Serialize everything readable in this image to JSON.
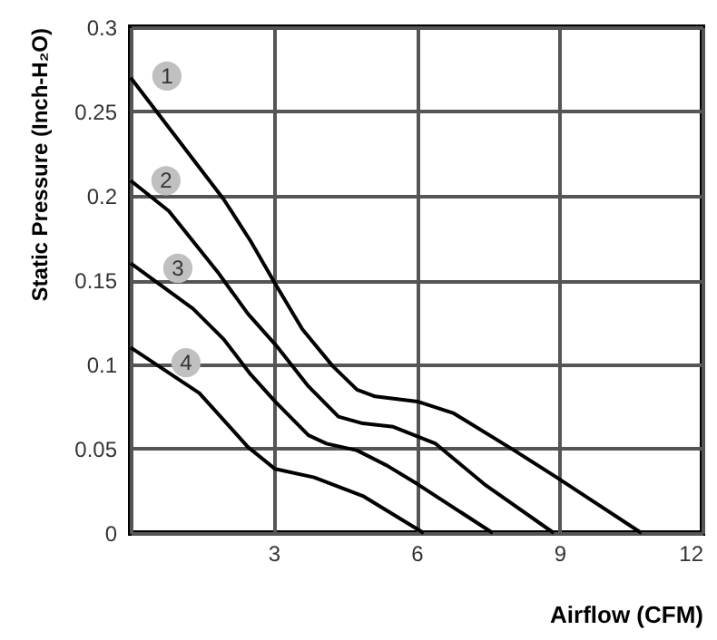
{
  "chart_data": {
    "type": "line",
    "xlabel": "Airflow (CFM)",
    "ylabel": "Static Pressure (Inch-H₂O)",
    "xlim": [
      0,
      12
    ],
    "xticks": [
      {
        "value": 0,
        "label": null
      },
      3,
      6,
      9,
      12
    ],
    "ylim": [
      0,
      0.3
    ],
    "yticks": [
      {
        "value": 0,
        "label": "0"
      },
      0.05,
      0.1,
      0.15,
      0.2,
      0.25,
      0.3
    ],
    "grid": true,
    "line_style": "solid",
    "marker": "none",
    "series": [
      {
        "color": "#000000",
        "x": [
          0,
          1.95,
          2.52,
          3.03,
          3.6,
          4.24,
          4.75,
          5.13,
          6.02,
          6.78,
          8.05,
          8.94,
          10.72
        ],
        "values": [
          0.27,
          0.198,
          0.173,
          0.148,
          0.121,
          0.099,
          0.085,
          0.081,
          0.078,
          0.071,
          0.049,
          0.033,
          0
        ]
      },
      {
        "color": "#000000",
        "x": [
          0,
          0.8,
          1.82,
          2.46,
          3.09,
          3.73,
          4.36,
          4.87,
          5.51,
          6.4,
          7.42,
          8.88
        ],
        "values": [
          0.209,
          0.191,
          0.155,
          0.13,
          0.11,
          0.087,
          0.069,
          0.065,
          0.063,
          0.053,
          0.029,
          0
        ]
      },
      {
        "color": "#000000",
        "x": [
          0,
          1.31,
          1.95,
          2.52,
          3.03,
          3.73,
          4.11,
          4.75,
          5.38,
          6.02,
          7.6
        ],
        "values": [
          0.16,
          0.133,
          0.115,
          0.094,
          0.078,
          0.058,
          0.053,
          0.049,
          0.04,
          0.029,
          0
        ]
      },
      {
        "color": "#000000",
        "x": [
          0,
          1.44,
          2.46,
          3.03,
          3.85,
          4.87,
          6.15
        ],
        "values": [
          0.11,
          0.083,
          0.051,
          0.038,
          0.033,
          0.022,
          0
        ]
      }
    ],
    "annotations": [
      {
        "text": "1",
        "x": 0.76,
        "y": 0.271
      },
      {
        "text": "2",
        "x": 0.74,
        "y": 0.209
      },
      {
        "text": "3",
        "x": 0.99,
        "y": 0.157
      },
      {
        "text": "4",
        "x": 1.16,
        "y": 0.101
      }
    ]
  }
}
